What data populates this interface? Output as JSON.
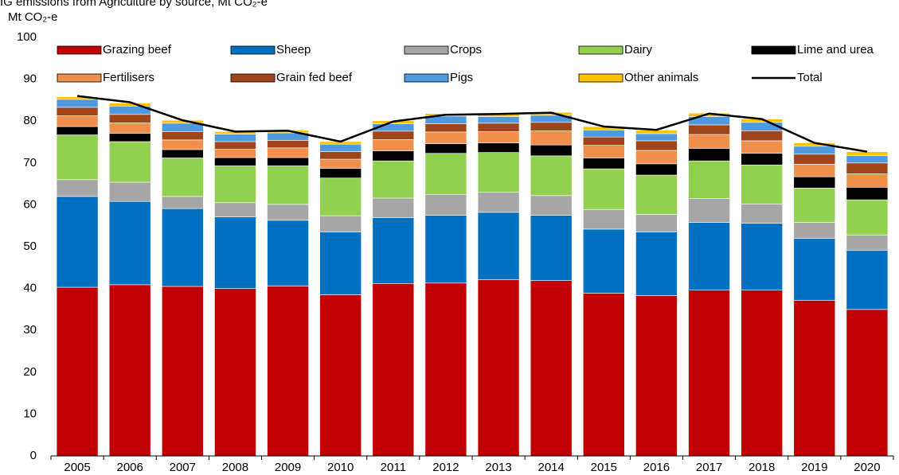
{
  "chart_data": {
    "type": "bar",
    "stacked": true,
    "title": "IG emissions from Agriculture by source, Mt CO₂-e",
    "y_label": "Mt CO₂-e",
    "categories": [
      "2005",
      "2006",
      "2007",
      "2008",
      "2009",
      "2010",
      "2011",
      "2012",
      "2013",
      "2014",
      "2015",
      "2016",
      "2017",
      "2018",
      "2019",
      "2020"
    ],
    "ylim": [
      0,
      100
    ],
    "yticks": [
      0,
      10,
      20,
      30,
      40,
      50,
      60,
      70,
      80,
      90,
      100
    ],
    "grid": false,
    "legend": "top",
    "series": [
      {
        "name": "Grazing beef",
        "color": "#c00000",
        "values": [
          40.3,
          40.9,
          40.5,
          40,
          40.6,
          38.5,
          41.2,
          41.3,
          42.1,
          41.9,
          38.9,
          38.3,
          39.6,
          39.6,
          37.2,
          35
        ]
      },
      {
        "name": "Sheep",
        "color": "#0070c0",
        "values": [
          21.7,
          19.9,
          18.6,
          17.1,
          15.7,
          15,
          15.7,
          16.2,
          16.1,
          15.6,
          15.3,
          15.2,
          16.2,
          16,
          14.8,
          14.1
        ]
      },
      {
        "name": "Crops",
        "color": "#a6a6a6",
        "values": [
          4,
          4.6,
          2.9,
          3.4,
          3.8,
          3.9,
          4.7,
          5,
          4.8,
          4.7,
          4.6,
          4.2,
          5.7,
          4.6,
          3.8,
          3.7
        ]
      },
      {
        "name": "Dairy",
        "color": "#92d050",
        "values": [
          10.7,
          9.7,
          9.2,
          8.8,
          9.2,
          9,
          8.9,
          9.8,
          9.5,
          9.5,
          9.8,
          9.4,
          9,
          9.3,
          8.2,
          8.4
        ]
      },
      {
        "name": "Lime and urea",
        "color": "#000000",
        "values": [
          2,
          2,
          2,
          2,
          2,
          2.3,
          2.4,
          2.3,
          2.3,
          2.6,
          2.6,
          2.7,
          3,
          2.8,
          2.7,
          3
        ]
      },
      {
        "name": "Fertilisers",
        "color": "#f08f4c",
        "values": [
          2.6,
          2.5,
          2.3,
          2,
          2.3,
          2.2,
          2.7,
          2.8,
          2.7,
          3.4,
          3,
          3.2,
          3.3,
          3,
          3,
          3.2
        ]
      },
      {
        "name": "Grain fed beef",
        "color": "#a0441a",
        "values": [
          2,
          2,
          2,
          1.8,
          1.8,
          1.8,
          2,
          2,
          2,
          2,
          2,
          2.3,
          2.3,
          2.4,
          2.4,
          2.6
        ]
      },
      {
        "name": "Pigs",
        "color": "#4f9ade",
        "values": [
          1.9,
          2,
          2,
          1.8,
          1.8,
          1.8,
          1.8,
          1.8,
          1.6,
          1.7,
          1.7,
          1.7,
          2,
          2,
          1.9,
          1.8
        ]
      },
      {
        "name": "Other animals",
        "color": "#ffc000",
        "values": [
          0.6,
          0.7,
          0.7,
          0.6,
          0.6,
          0.6,
          0.7,
          0.6,
          0.7,
          0.7,
          0.8,
          0.8,
          0.8,
          0.8,
          0.8,
          0.9
        ]
      },
      {
        "name": "Total",
        "color": "#000000",
        "type": "line",
        "values": [
          86,
          84.5,
          80.2,
          77.5,
          77.7,
          75.1,
          79.9,
          81.5,
          81.7,
          82,
          78.7,
          77.9,
          81.8,
          80.5,
          74.8,
          72.7
        ]
      }
    ]
  }
}
